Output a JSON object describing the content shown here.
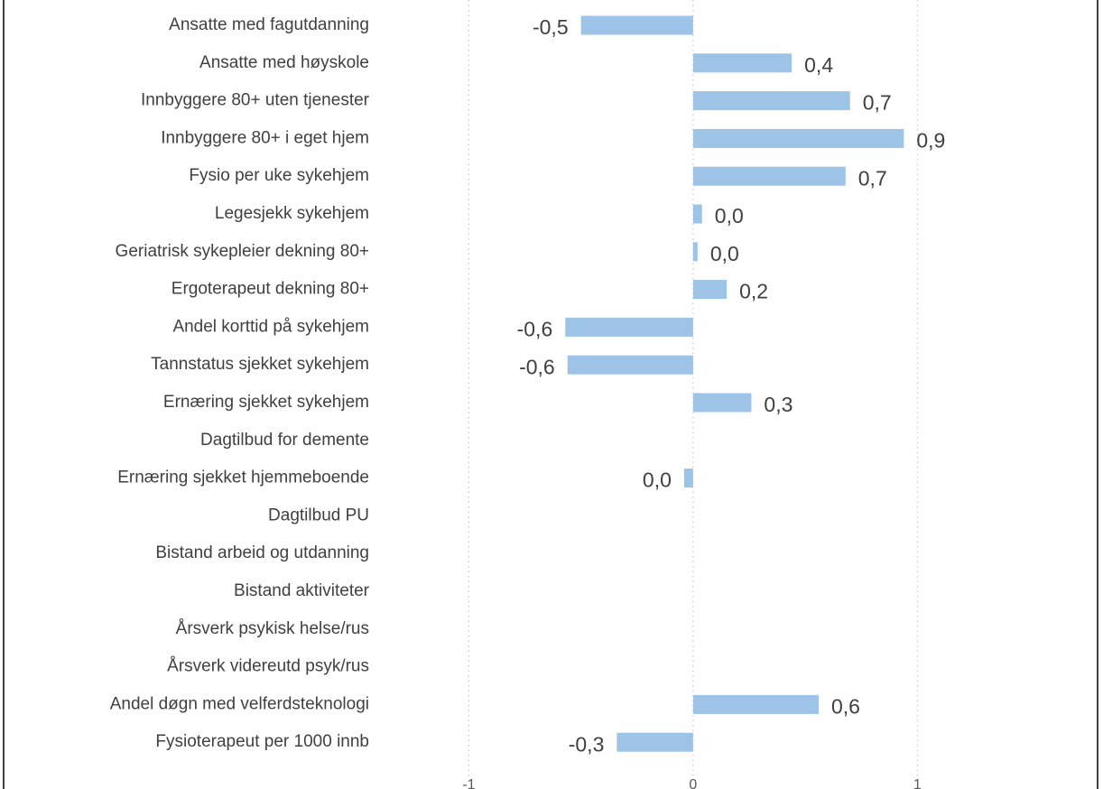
{
  "chart_data": {
    "type": "hbar",
    "categories": [
      "Ansatte med fagutdanning",
      "Ansatte med høyskole",
      "Innbyggere 80+ uten tjenester",
      "Innbyggere 80+ i eget hjem",
      "Fysio per uke sykehjem",
      "Legesjekk sykehjem",
      "Geriatrisk sykepleier dekning 80+",
      "Ergoterapeut dekning 80+",
      "Andel korttid på sykehjem",
      "Tannstatus sjekket sykehjem",
      "Ernæring sjekket sykehjem",
      "Dagtilbud for demente",
      "Ernæring sjekket hjemmeboende",
      "Dagtilbud PU",
      "Bistand arbeid og utdanning",
      "Bistand aktiviteter",
      "Årsverk psykisk helse/rus",
      "Årsverk videreutd psyk/rus",
      "Andel døgn med velferdsteknologi",
      "Fysioterapeut per 1000 innb"
    ],
    "values": [
      -0.5,
      0.44,
      0.7,
      0.94,
      0.68,
      0.04,
      0.02,
      0.15,
      -0.57,
      -0.56,
      0.26,
      null,
      -0.04,
      null,
      null,
      null,
      null,
      null,
      0.56,
      -0.34
    ],
    "value_labels": [
      "-0,5",
      "0,4",
      "0,7",
      "0,9",
      "0,7",
      "0,0",
      "0,0",
      "0,2",
      "-0,6",
      "-0,6",
      "0,3",
      null,
      "0,0",
      null,
      null,
      null,
      null,
      null,
      "0,6",
      "-0,3"
    ],
    "color": "#9dc3e6",
    "xlim": [
      -1.36,
      1.8
    ],
    "xticks": [
      -1,
      0,
      1
    ],
    "grid": true
  }
}
